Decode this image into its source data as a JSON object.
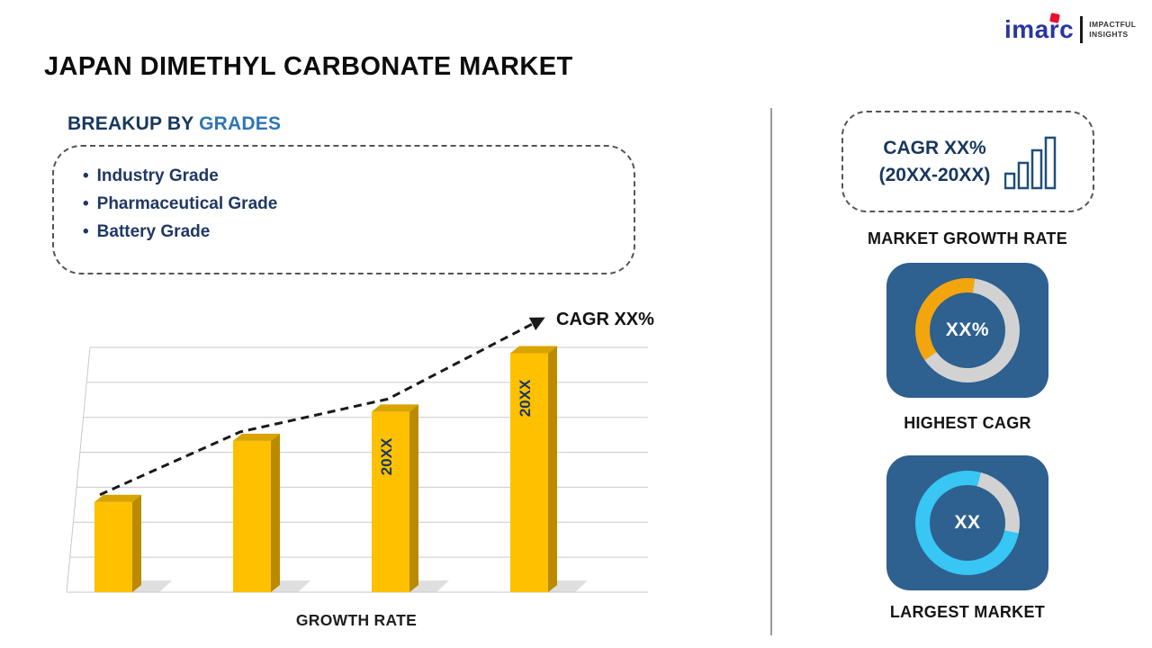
{
  "colors": {
    "bar_yellow": "#FFC000",
    "bar_side": "#BA8B00",
    "bar_top": "#D9A300",
    "tile_blue": "#2E6090",
    "donut_yellow": "#F2A50C",
    "donut_cyan": "#38C6F4",
    "ring_gray": "#D2D2D2",
    "navy": "#17375E",
    "highlight_blue": "#2E75B6",
    "brand_blue": "#2B35A0",
    "brand_red": "#E8112D",
    "grid_gray": "#C9C9C9",
    "trend_black": "#1A1A1A"
  },
  "header": {
    "title": "JAPAN DIMETHYL CARBONATE MARKET",
    "logo": {
      "brand": "imarc",
      "tagline_line1": "IMPACTFUL",
      "tagline_line2": "INSIGHTS"
    }
  },
  "breakup": {
    "heading_prefix": "BREAKUP BY",
    "heading_highlight": "GRADES",
    "bullet": "•",
    "items": [
      "Industry Grade",
      "Pharmaceutical Grade",
      "Battery Grade"
    ]
  },
  "chart_data": {
    "type": "bar",
    "title": "",
    "categories": [
      "",
      "",
      "20XX",
      "20XX"
    ],
    "values": [
      34,
      57,
      68,
      90
    ],
    "bar_labels": [
      "",
      "",
      "20XX",
      "20XX"
    ],
    "bar_color": "#FFC000",
    "trend_label": "CAGR XX%",
    "xlabel": "GROWTH RATE",
    "ylabel": "",
    "ylim": [
      0,
      100
    ],
    "grid": true,
    "legend": false
  },
  "sidebar": {
    "cagr_card": {
      "line1": "CAGR XX%",
      "line2": "(20XX-20XX)"
    },
    "market_growth_label": "MARKET GROWTH RATE",
    "highest_cagr": {
      "value": "XX%",
      "label": "HIGHEST CAGR",
      "segment_percent": 37
    },
    "largest_market": {
      "value": "XX",
      "label": "LARGEST MARKET",
      "segment_percent": 76
    }
  }
}
